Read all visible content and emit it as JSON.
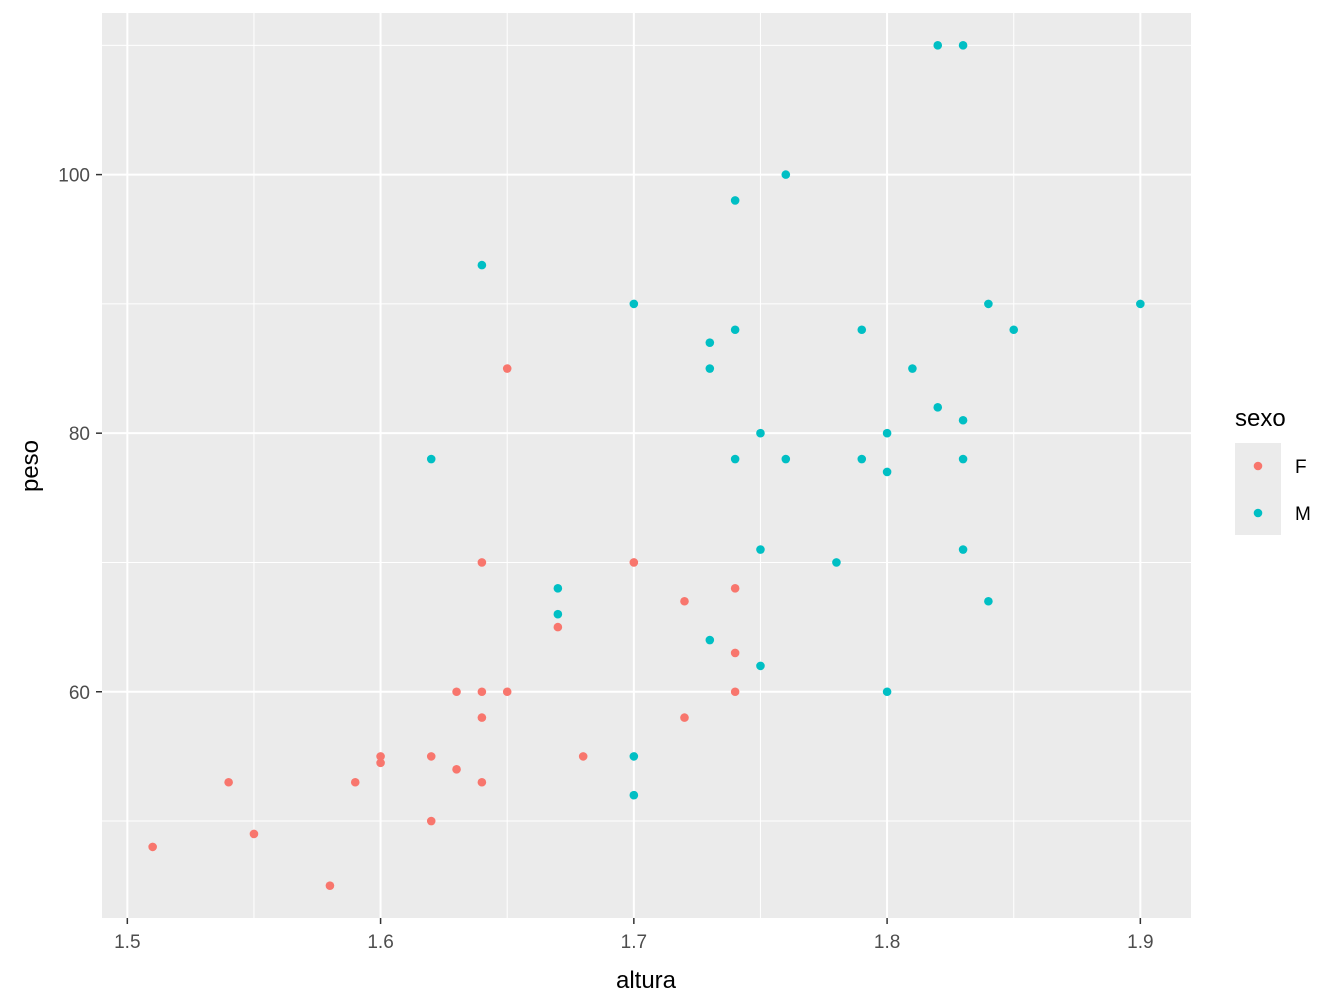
{
  "chart_data": {
    "type": "scatter",
    "xlabel": "altura",
    "ylabel": "peso",
    "xlim": [
      1.49,
      1.92
    ],
    "ylim": [
      42.5,
      112.5
    ],
    "x_ticks": [
      1.5,
      1.6,
      1.7,
      1.8,
      1.9
    ],
    "x_tick_labels": [
      "1.5",
      "1.6",
      "1.7",
      "1.8",
      "1.9"
    ],
    "y_ticks": [
      60,
      80,
      100
    ],
    "y_tick_labels": [
      "60",
      "80",
      "100"
    ],
    "y_minor_ticks": [
      50,
      70,
      90,
      110
    ],
    "x_minor_ticks": [
      1.55,
      1.65,
      1.75,
      1.85
    ],
    "grid": true,
    "panel_background": "#ebebeb",
    "legend": {
      "title": "sexo",
      "position": "right",
      "entries": [
        "F",
        "M"
      ]
    },
    "series": [
      {
        "name": "F",
        "color": "#f8766d",
        "points": [
          [
            1.51,
            48
          ],
          [
            1.54,
            53
          ],
          [
            1.55,
            49
          ],
          [
            1.58,
            45
          ],
          [
            1.59,
            53
          ],
          [
            1.6,
            55
          ],
          [
            1.6,
            54.5
          ],
          [
            1.62,
            55
          ],
          [
            1.62,
            50
          ],
          [
            1.63,
            60
          ],
          [
            1.63,
            54
          ],
          [
            1.64,
            70
          ],
          [
            1.64,
            60
          ],
          [
            1.64,
            58
          ],
          [
            1.64,
            53
          ],
          [
            1.65,
            85
          ],
          [
            1.65,
            60
          ],
          [
            1.67,
            65
          ],
          [
            1.68,
            55
          ],
          [
            1.7,
            70
          ],
          [
            1.72,
            67
          ],
          [
            1.72,
            58
          ],
          [
            1.74,
            68
          ],
          [
            1.74,
            63
          ],
          [
            1.74,
            60
          ]
        ]
      },
      {
        "name": "M",
        "color": "#00bfc4",
        "points": [
          [
            1.62,
            78
          ],
          [
            1.64,
            93
          ],
          [
            1.67,
            68
          ],
          [
            1.67,
            66
          ],
          [
            1.7,
            90
          ],
          [
            1.7,
            55
          ],
          [
            1.7,
            52
          ],
          [
            1.73,
            87
          ],
          [
            1.73,
            85
          ],
          [
            1.73,
            64
          ],
          [
            1.74,
            98
          ],
          [
            1.74,
            88
          ],
          [
            1.74,
            78
          ],
          [
            1.75,
            80
          ],
          [
            1.75,
            71
          ],
          [
            1.75,
            62
          ],
          [
            1.76,
            100
          ],
          [
            1.76,
            78
          ],
          [
            1.78,
            70
          ],
          [
            1.79,
            88
          ],
          [
            1.79,
            78
          ],
          [
            1.8,
            80
          ],
          [
            1.8,
            77
          ],
          [
            1.8,
            60
          ],
          [
            1.81,
            85
          ],
          [
            1.82,
            110
          ],
          [
            1.82,
            82
          ],
          [
            1.83,
            110
          ],
          [
            1.83,
            81
          ],
          [
            1.83,
            78
          ],
          [
            1.83,
            71
          ],
          [
            1.84,
            90
          ],
          [
            1.84,
            67
          ],
          [
            1.85,
            88
          ],
          [
            1.9,
            90
          ]
        ]
      }
    ]
  }
}
